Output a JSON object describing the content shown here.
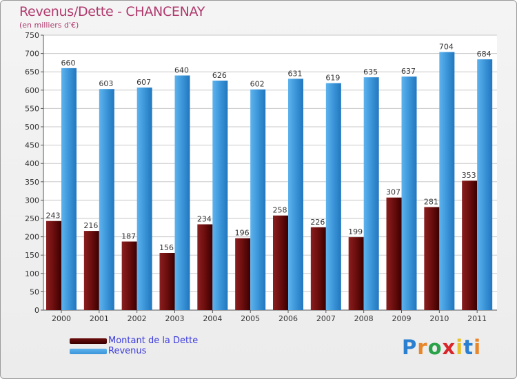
{
  "chart_data": {
    "type": "bar",
    "title": "Revenus/Dette - CHANCENAY",
    "subtitle": "(en milliers d'€)",
    "categories": [
      "2000",
      "2001",
      "2002",
      "2003",
      "2004",
      "2005",
      "2006",
      "2007",
      "2008",
      "2009",
      "2010",
      "2011"
    ],
    "series": [
      {
        "name": "Montant de la Dette",
        "color": "#6b0d0d",
        "values": [
          243,
          216,
          187,
          156,
          234,
          196,
          258,
          226,
          199,
          307,
          281,
          353
        ]
      },
      {
        "name": "Revenus",
        "color": "#3b95d8",
        "values": [
          660,
          603,
          607,
          640,
          626,
          602,
          631,
          619,
          635,
          637,
          704,
          684
        ]
      }
    ],
    "ylim": [
      0,
      750
    ],
    "yticks": [
      0,
      50,
      100,
      150,
      200,
      250,
      300,
      350,
      400,
      450,
      500,
      550,
      600,
      650,
      700,
      750
    ],
    "grid": true,
    "legend": "bottom-left"
  },
  "branding": {
    "logo_letters": [
      "P",
      "r",
      "o",
      "x",
      "i",
      "t",
      "i"
    ],
    "logo_colors": [
      "#2a7fd0",
      "#e8862a",
      "#2aa24a",
      "#d8262a",
      "#e8c02a",
      "#2a7fd0",
      "#e8862a"
    ]
  }
}
